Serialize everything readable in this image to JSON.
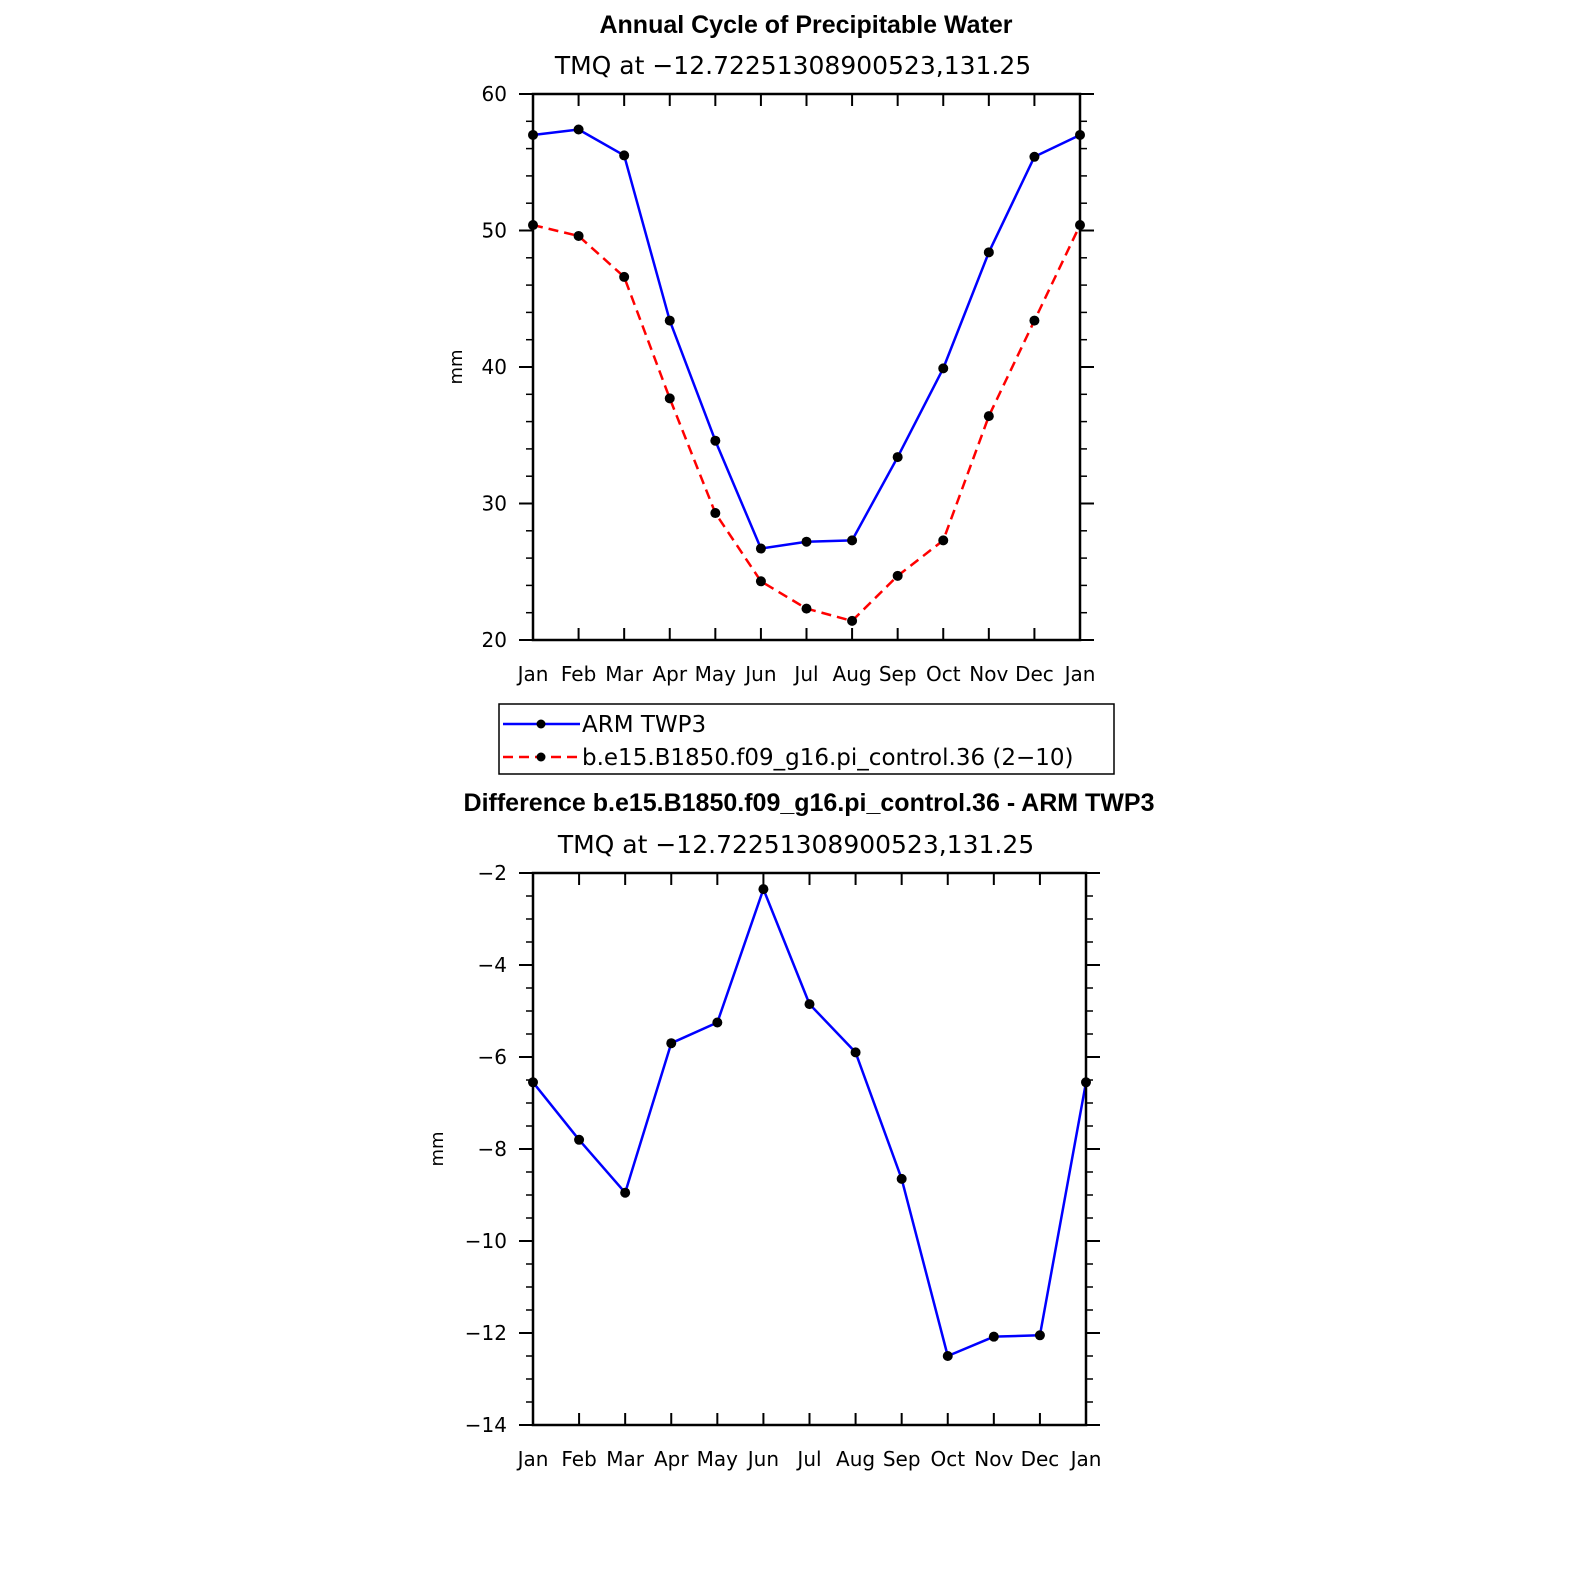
{
  "chart_data": [
    {
      "type": "line",
      "title": "Annual Cycle of Precipitable Water",
      "subtitle": "TMQ at −12.72251308900523,131.25",
      "xlabel": "",
      "ylabel": "mm",
      "categories": [
        "Jan",
        "Feb",
        "Mar",
        "Apr",
        "May",
        "Jun",
        "Jul",
        "Aug",
        "Sep",
        "Oct",
        "Nov",
        "Dec",
        "Jan"
      ],
      "ylim": [
        20,
        60
      ],
      "yticks": [
        "20",
        "30",
        "40",
        "50",
        "60"
      ],
      "grid": false,
      "legend_position": "bottom",
      "series": [
        {
          "name": "ARM TWP3",
          "color": "#0000ff",
          "style": "solid",
          "values": [
            57.0,
            57.4,
            55.5,
            43.4,
            34.6,
            26.7,
            27.2,
            27.3,
            33.4,
            39.9,
            48.4,
            55.4,
            57.0
          ]
        },
        {
          "name": "b.e15.B1850.f09_g16.pi_control.36 (2−10)",
          "color": "#ff0000",
          "style": "dashed",
          "values": [
            50.4,
            49.6,
            46.6,
            37.7,
            29.3,
            24.3,
            22.3,
            21.4,
            24.7,
            27.3,
            36.4,
            43.4,
            50.4
          ]
        }
      ]
    },
    {
      "type": "line",
      "title": "Difference b.e15.B1850.f09_g16.pi_control.36 - ARM TWP3",
      "subtitle": "TMQ at −12.72251308900523,131.25",
      "xlabel": "",
      "ylabel": "mm",
      "categories": [
        "Jan",
        "Feb",
        "Mar",
        "Apr",
        "May",
        "Jun",
        "Jul",
        "Aug",
        "Sep",
        "Oct",
        "Nov",
        "Dec",
        "Jan"
      ],
      "ylim": [
        -14,
        -2
      ],
      "yticks": [
        "−14",
        "−12",
        "−10",
        "−8",
        "−6",
        "−4",
        "−2"
      ],
      "grid": false,
      "series": [
        {
          "color": "#0000ff",
          "style": "solid",
          "values": [
            -6.55,
            -7.8,
            -8.95,
            -5.7,
            -5.25,
            -2.35,
            -4.85,
            -5.9,
            -8.65,
            -12.5,
            -12.08,
            -12.05,
            -6.55
          ]
        }
      ]
    }
  ]
}
